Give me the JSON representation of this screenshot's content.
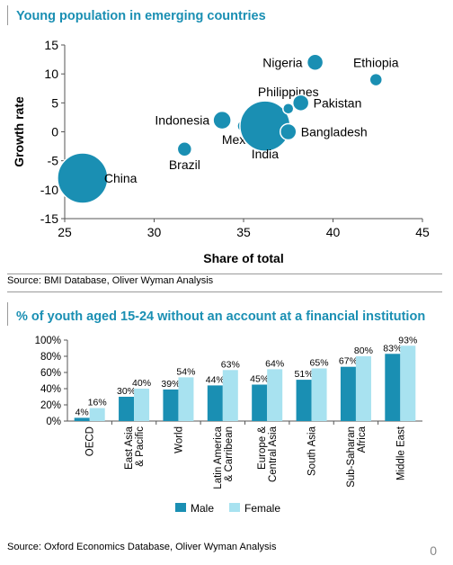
{
  "chart1": {
    "title": "Young population in emerging countries",
    "source": "Source: BMI Database, Oliver Wyman Analysis",
    "chart_data": {
      "type": "scatter",
      "title": "Young population in emerging countries",
      "xlabel": "Share of total",
      "ylabel": "Growth rate",
      "xlim": [
        25,
        45
      ],
      "ylim": [
        -15,
        15
      ],
      "xticks": [
        25,
        30,
        35,
        40,
        45
      ],
      "yticks": [
        15,
        10,
        5,
        0,
        -5,
        -10,
        -15
      ],
      "color": "#1a8fb3",
      "points": [
        {
          "label": "China",
          "x": 26,
          "y": -8,
          "size": 28
        },
        {
          "label": "Brazil",
          "x": 31.7,
          "y": -3,
          "size": 8
        },
        {
          "label": "Indonesia",
          "x": 33.8,
          "y": 2,
          "size": 10
        },
        {
          "label": "Mexico",
          "x": 35,
          "y": 1,
          "size": 7
        },
        {
          "label": "India",
          "x": 36.2,
          "y": 1,
          "size": 28
        },
        {
          "label": "Bangladesh",
          "x": 37.5,
          "y": 0,
          "size": 9
        },
        {
          "label": "Philippines",
          "x": 37.5,
          "y": 4,
          "size": 6
        },
        {
          "label": "Pakistan",
          "x": 38.2,
          "y": 5,
          "size": 9
        },
        {
          "label": "Nigeria",
          "x": 39,
          "y": 12,
          "size": 9
        },
        {
          "label": "Ethiopia",
          "x": 42.4,
          "y": 9,
          "size": 7
        }
      ]
    }
  },
  "chart2": {
    "title": "% of youth aged 15-24 without an account at a financial institution",
    "source": "Source: Oxford Economics Database, Oliver Wyman Analysis",
    "chart_data": {
      "type": "bar",
      "categories": [
        "OECD",
        "East Asia & Pacific",
        "World",
        "Latin America & Carribean",
        "Europe & Central Asia",
        "South Asia",
        "Sub-Saharan Africa",
        "Middle East"
      ],
      "category_lines": [
        [
          "OECD"
        ],
        [
          "East Asia",
          "& Pacific"
        ],
        [
          "World"
        ],
        [
          "Latin America",
          "& Carribean"
        ],
        [
          "Europe &",
          "Central Asia"
        ],
        [
          "South Asia"
        ],
        [
          "Sub-Saharan",
          "Africa"
        ],
        [
          "Middle East"
        ]
      ],
      "series": [
        {
          "name": "Male",
          "color": "#1a8fb3",
          "values": [
            4,
            30,
            39,
            44,
            45,
            51,
            67,
            83
          ]
        },
        {
          "name": "Female",
          "color": "#a8e2f0",
          "values": [
            16,
            40,
            54,
            63,
            64,
            65,
            80,
            93
          ]
        }
      ],
      "ylim": [
        0,
        100
      ],
      "yticks": [
        "100%",
        "80%",
        "60%",
        "40%",
        "20%",
        "0%"
      ],
      "value_suffix": "%",
      "legend_position": "bottom"
    }
  },
  "page_number": "0"
}
